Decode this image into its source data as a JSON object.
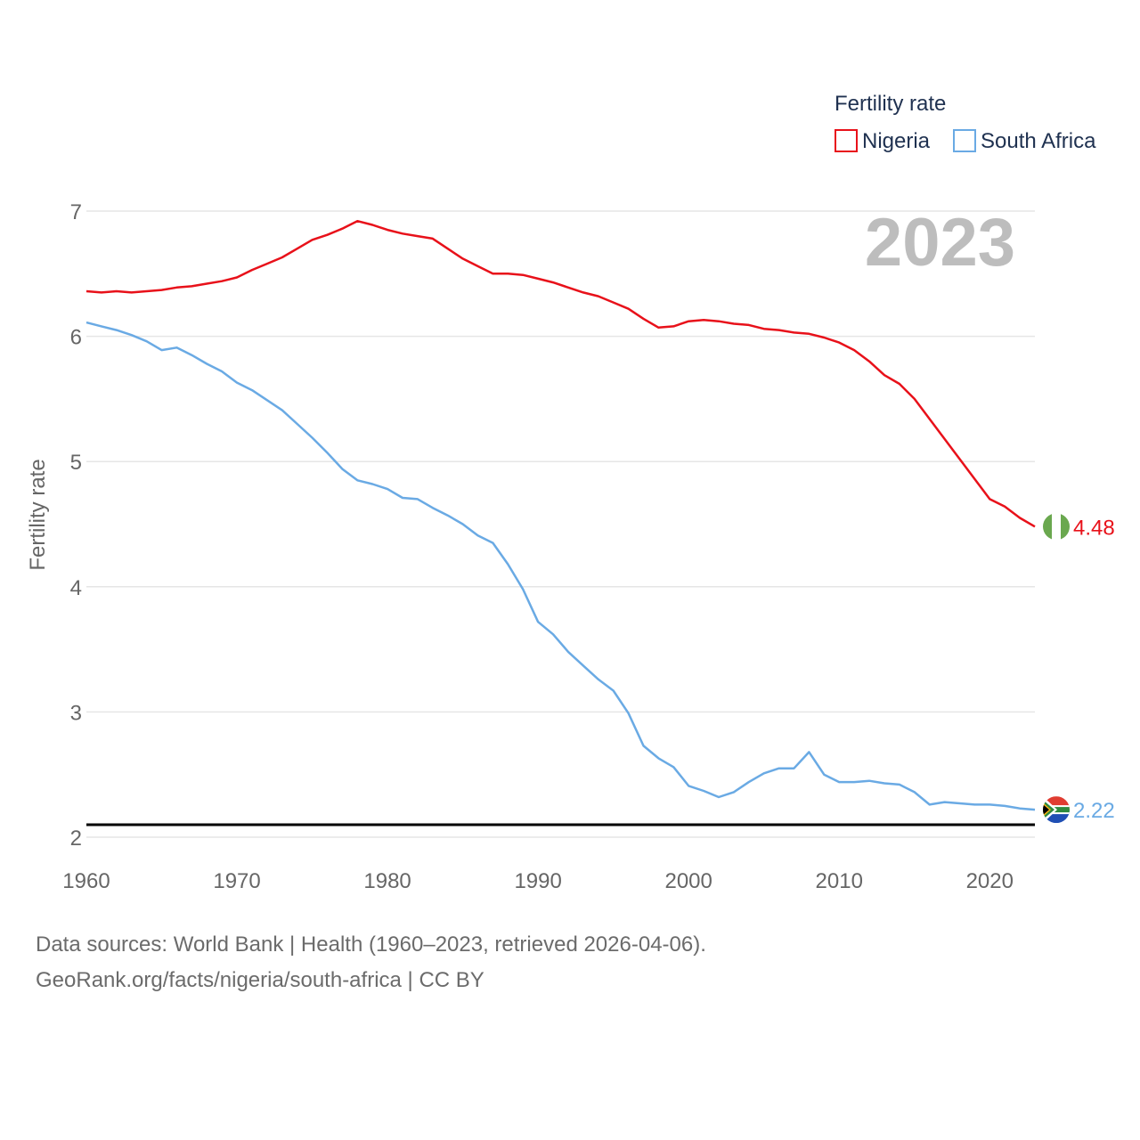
{
  "chart_data": {
    "type": "line",
    "legend_title": "Fertility rate",
    "ylabel": "Fertility rate",
    "current_year": "2023",
    "xlim": [
      1960,
      2023
    ],
    "ylim": [
      2,
      7
    ],
    "x_ticks": [
      "1960",
      "1970",
      "1980",
      "1990",
      "2000",
      "2010",
      "2020"
    ],
    "y_ticks": [
      "2",
      "3",
      "4",
      "5",
      "6",
      "7"
    ],
    "reference_line": 2.1,
    "x": [
      1960,
      1961,
      1962,
      1963,
      1964,
      1965,
      1966,
      1967,
      1968,
      1969,
      1970,
      1971,
      1972,
      1973,
      1974,
      1975,
      1976,
      1977,
      1978,
      1979,
      1980,
      1981,
      1982,
      1983,
      1984,
      1985,
      1986,
      1987,
      1988,
      1989,
      1990,
      1991,
      1992,
      1993,
      1994,
      1995,
      1996,
      1997,
      1998,
      1999,
      2000,
      2001,
      2002,
      2003,
      2004,
      2005,
      2006,
      2007,
      2008,
      2009,
      2010,
      2011,
      2012,
      2013,
      2014,
      2015,
      2016,
      2017,
      2018,
      2019,
      2020,
      2021,
      2022,
      2023
    ],
    "series": [
      {
        "name": "Nigeria",
        "color": "#e8111a",
        "end_label": "4.48",
        "values": [
          6.36,
          6.35,
          6.36,
          6.35,
          6.36,
          6.37,
          6.39,
          6.4,
          6.42,
          6.44,
          6.47,
          6.53,
          6.58,
          6.63,
          6.7,
          6.77,
          6.81,
          6.86,
          6.92,
          6.89,
          6.85,
          6.82,
          6.8,
          6.78,
          6.7,
          6.62,
          6.56,
          6.5,
          6.5,
          6.49,
          6.46,
          6.43,
          6.39,
          6.35,
          6.32,
          6.27,
          6.22,
          6.14,
          6.07,
          6.08,
          6.12,
          6.13,
          6.12,
          6.1,
          6.09,
          6.06,
          6.05,
          6.03,
          6.02,
          5.99,
          5.95,
          5.89,
          5.8,
          5.69,
          5.62,
          5.5,
          5.34,
          5.18,
          5.02,
          4.86,
          4.7,
          4.64,
          4.55,
          4.48
        ]
      },
      {
        "name": "South Africa",
        "color": "#6aaae4",
        "end_label": "2.22",
        "values": [
          6.11,
          6.08,
          6.05,
          6.01,
          5.96,
          5.89,
          5.91,
          5.85,
          5.78,
          5.72,
          5.63,
          5.57,
          5.49,
          5.41,
          5.3,
          5.19,
          5.07,
          4.94,
          4.85,
          4.82,
          4.78,
          4.71,
          4.7,
          4.63,
          4.57,
          4.5,
          4.41,
          4.35,
          4.18,
          3.98,
          3.72,
          3.62,
          3.48,
          3.37,
          3.26,
          3.17,
          2.99,
          2.73,
          2.63,
          2.56,
          2.41,
          2.37,
          2.32,
          2.36,
          2.44,
          2.51,
          2.55,
          2.55,
          2.68,
          2.5,
          2.44,
          2.44,
          2.45,
          2.43,
          2.42,
          2.36,
          2.26,
          2.28,
          2.27,
          2.26,
          2.26,
          2.25,
          2.23,
          2.22
        ]
      }
    ]
  },
  "footer": {
    "line1": "Data sources: World Bank | Health (1960–2023, retrieved 2026-04-06).",
    "line2": "GeoRank.org/facts/nigeria/south-africa | CC BY"
  },
  "flags": {
    "nigeria": {
      "green": "#6aa84f",
      "white": "#ffffff"
    },
    "south_africa": {
      "red": "#e03c31",
      "blue": "#1f4fb4",
      "green": "#2e8b3e",
      "yellow": "#ffb612",
      "black": "#000000",
      "white": "#ffffff"
    }
  }
}
